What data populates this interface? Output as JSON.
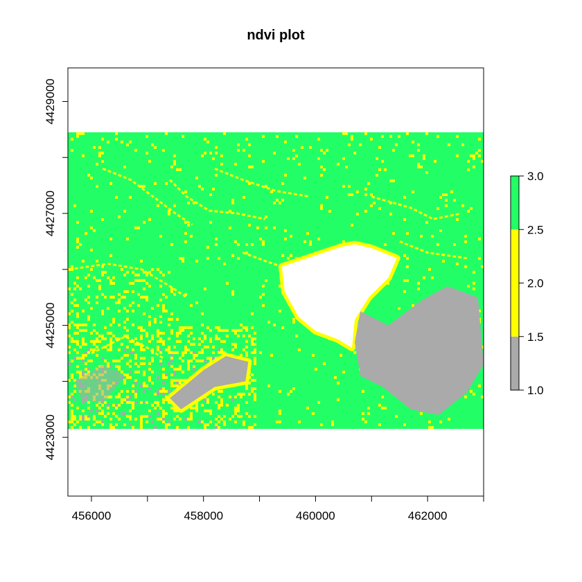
{
  "chart_data": {
    "type": "heatmap",
    "title": "ndvi plot",
    "xlabel": "",
    "ylabel": "",
    "xlim": [
      455580,
      463000
    ],
    "ylim": [
      4421950,
      4429600
    ],
    "x_ticks": [
      456000,
      457000,
      458000,
      459000,
      460000,
      461000,
      462000,
      463000
    ],
    "x_tick_labels": [
      "456000",
      "",
      "458000",
      "",
      "460000",
      "",
      "462000",
      ""
    ],
    "y_ticks": [
      4423000,
      4424000,
      4425000,
      4426000,
      4427000,
      4428000,
      4429000
    ],
    "y_tick_labels": [
      "4423000",
      "",
      "4425000",
      "",
      "4427000",
      "",
      "4429000"
    ],
    "raster_extent": {
      "xmin": 455580,
      "xmax": 463000,
      "ymin": 4423150,
      "ymax": 4428450
    },
    "classes": [
      {
        "range": [
          1.0,
          1.5
        ],
        "color": "#aaaaaa"
      },
      {
        "range": [
          1.5,
          2.5
        ],
        "color": "#ffff00"
      },
      {
        "range": [
          2.5,
          3.0
        ],
        "color": "#22ff66"
      }
    ],
    "nodata_color": "#ffffff",
    "legend": {
      "placement": "right",
      "ticks": [
        1.0,
        1.5,
        2.0,
        2.5,
        3.0
      ],
      "tick_labels": [
        "1.0",
        "1.5",
        "2.0",
        "2.5",
        "3.0"
      ],
      "range": [
        1.0,
        3.0
      ]
    },
    "regions": {
      "white_nodata": [
        [
          460450,
          4426400
        ],
        [
          460700,
          4426450
        ],
        [
          461000,
          4426380
        ],
        [
          461450,
          4426200
        ],
        [
          461300,
          4425850
        ],
        [
          460950,
          4425500
        ],
        [
          460700,
          4425100
        ],
        [
          460650,
          4424600
        ],
        [
          460400,
          4424750
        ],
        [
          460000,
          4424900
        ],
        [
          459700,
          4425150
        ],
        [
          459450,
          4425600
        ],
        [
          459400,
          4426050
        ]
      ],
      "gray_east": [
        [
          460800,
          4425250
        ],
        [
          461300,
          4425000
        ],
        [
          461900,
          4425450
        ],
        [
          462350,
          4425700
        ],
        [
          462900,
          4425500
        ],
        [
          463000,
          4424300
        ],
        [
          462700,
          4423800
        ],
        [
          462200,
          4423400
        ],
        [
          461700,
          4423500
        ],
        [
          461200,
          4423900
        ],
        [
          460800,
          4424100
        ],
        [
          460700,
          4424700
        ]
      ],
      "gray_south": [
        [
          457400,
          4423700
        ],
        [
          458000,
          4424200
        ],
        [
          458400,
          4424450
        ],
        [
          458800,
          4424350
        ],
        [
          458750,
          4424000
        ],
        [
          458200,
          4423900
        ],
        [
          457600,
          4423500
        ]
      ],
      "gray_west_spots": [
        [
          455700,
          4424000
        ],
        [
          456200,
          4424300
        ],
        [
          456600,
          4424100
        ],
        [
          456200,
          4423600
        ],
        [
          455800,
          4423700
        ]
      ]
    }
  }
}
